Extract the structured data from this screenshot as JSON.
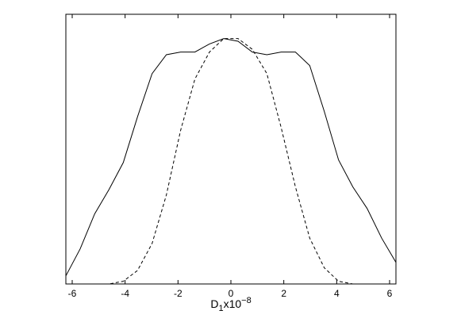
{
  "chart_data": {
    "type": "line",
    "x_label": {
      "base": "D",
      "sub": "1",
      "mid": "x10",
      "sup": "−8"
    },
    "x": [
      -6.24,
      -5.7,
      -5.15,
      -4.61,
      -4.07,
      -3.53,
      -2.98,
      -2.44,
      -1.9,
      -1.36,
      -0.81,
      -0.27,
      0.27,
      0.81,
      1.36,
      1.9,
      2.44,
      2.98,
      3.53,
      4.07,
      4.61,
      5.15,
      5.7,
      6.24
    ],
    "series": [
      {
        "color": "#000000",
        "dash": "solid",
        "values": [
          0.03,
          0.13,
          0.26,
          0.35,
          0.45,
          0.62,
          0.78,
          0.85,
          0.86,
          0.86,
          0.89,
          0.91,
          0.9,
          0.86,
          0.85,
          0.86,
          0.86,
          0.81,
          0.64,
          0.46,
          0.36,
          0.28,
          0.17,
          0.08
        ]
      },
      {
        "color": "#000000",
        "dash": "dashed",
        "values": [
          0,
          0,
          0,
          0,
          0.01,
          0.05,
          0.15,
          0.33,
          0.57,
          0.76,
          0.86,
          0.91,
          0.91,
          0.87,
          0.78,
          0.58,
          0.36,
          0.17,
          0.06,
          0.01,
          0,
          0,
          0,
          0
        ]
      }
    ],
    "xlim": [
      -6.24,
      6.24
    ],
    "xticks": [
      -6,
      -4,
      -2,
      0,
      2,
      4,
      6
    ],
    "ylim": [
      0,
      1
    ]
  }
}
